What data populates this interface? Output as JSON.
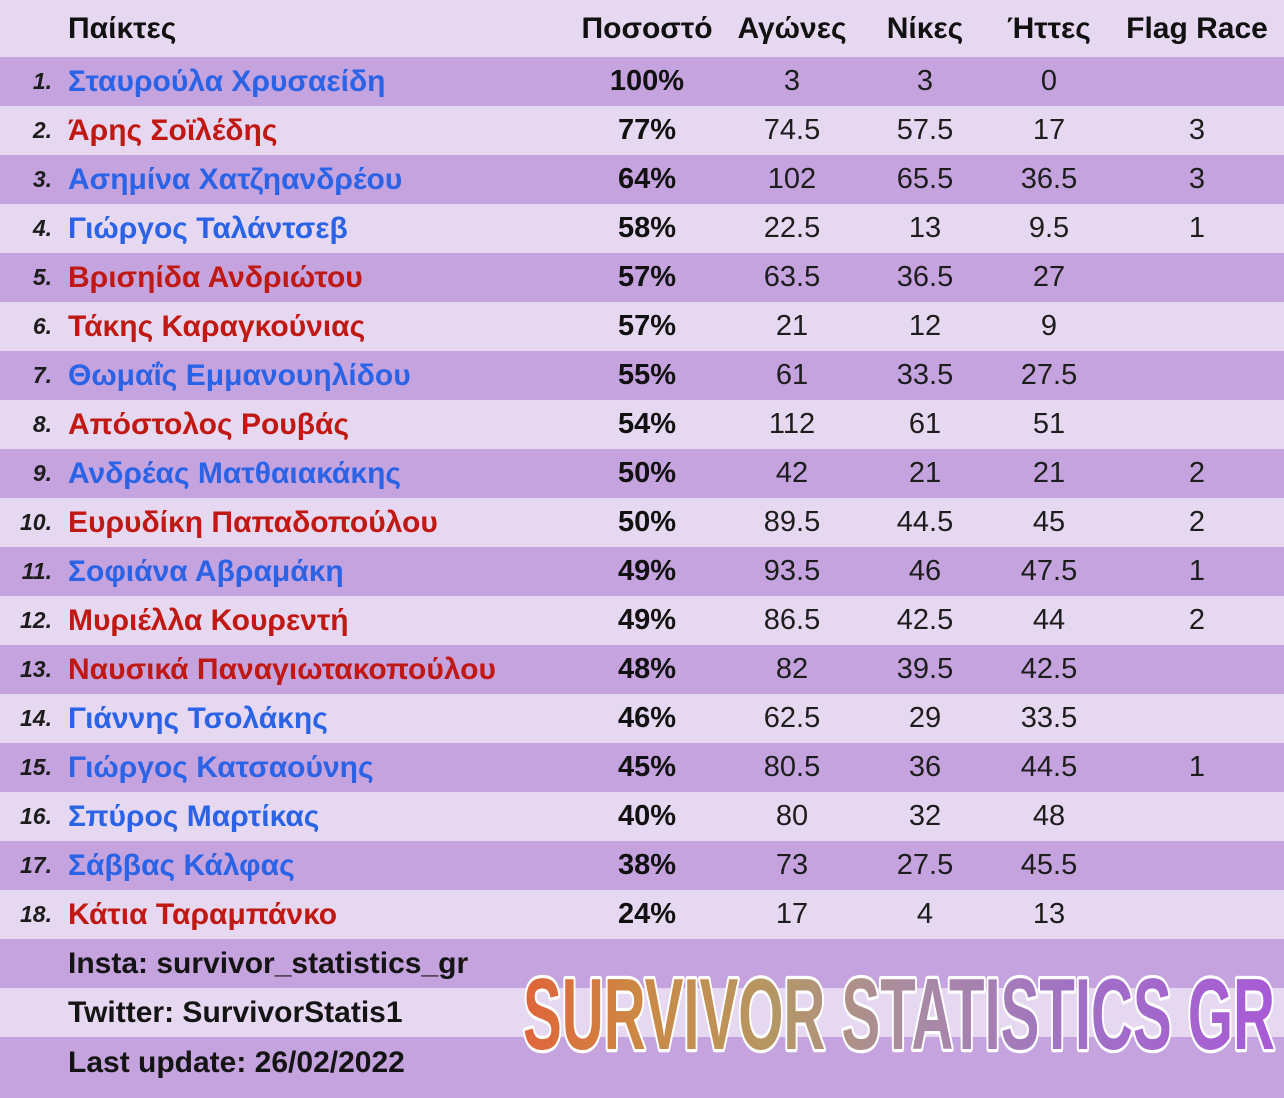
{
  "chart_data": {
    "type": "table",
    "columns": [
      "Παίκτες",
      "Ποσοστό",
      "Αγώνες",
      "Νίκες",
      "Ήττες",
      "Flag Race"
    ],
    "rows": [
      {
        "rank": "1.",
        "name": "Σταυρούλα Χρυσαείδη",
        "team_color": "blue",
        "pct": "100%",
        "games": "3",
        "wins": "3",
        "losses": "0",
        "flag_race": ""
      },
      {
        "rank": "2.",
        "name": "Άρης Σοϊλέδης",
        "team_color": "red",
        "pct": "77%",
        "games": "74.5",
        "wins": "57.5",
        "losses": "17",
        "flag_race": "3"
      },
      {
        "rank": "3.",
        "name": "Ασημίνα Χατζηανδρέου",
        "team_color": "blue",
        "pct": "64%",
        "games": "102",
        "wins": "65.5",
        "losses": "36.5",
        "flag_race": "3"
      },
      {
        "rank": "4.",
        "name": "Γιώργος Ταλάντσεβ",
        "team_color": "blue",
        "pct": "58%",
        "games": "22.5",
        "wins": "13",
        "losses": "9.5",
        "flag_race": "1"
      },
      {
        "rank": "5.",
        "name": "Βρισηίδα Ανδριώτου",
        "team_color": "red",
        "pct": "57%",
        "games": "63.5",
        "wins": "36.5",
        "losses": "27",
        "flag_race": ""
      },
      {
        "rank": "6.",
        "name": "Τάκης Καραγκούνιας",
        "team_color": "red",
        "pct": "57%",
        "games": "21",
        "wins": "12",
        "losses": "9",
        "flag_race": ""
      },
      {
        "rank": "7.",
        "name": "Θωμαΐς Εμμανουηλίδου",
        "team_color": "blue",
        "pct": "55%",
        "games": "61",
        "wins": "33.5",
        "losses": "27.5",
        "flag_race": ""
      },
      {
        "rank": "8.",
        "name": "Απόστολος Ρουβάς",
        "team_color": "red",
        "pct": "54%",
        "games": "112",
        "wins": "61",
        "losses": "51",
        "flag_race": ""
      },
      {
        "rank": "9.",
        "name": "Ανδρέας Ματθαιακάκης",
        "team_color": "blue",
        "pct": "50%",
        "games": "42",
        "wins": "21",
        "losses": "21",
        "flag_race": "2"
      },
      {
        "rank": "10.",
        "name": "Ευρυδίκη Παπαδοπούλου",
        "team_color": "red",
        "pct": "50%",
        "games": "89.5",
        "wins": "44.5",
        "losses": "45",
        "flag_race": "2"
      },
      {
        "rank": "11.",
        "name": "Σοφιάνα Αβραμάκη",
        "team_color": "blue",
        "pct": "49%",
        "games": "93.5",
        "wins": "46",
        "losses": "47.5",
        "flag_race": "1"
      },
      {
        "rank": "12.",
        "name": "Μυριέλλα Κουρεντή",
        "team_color": "red",
        "pct": "49%",
        "games": "86.5",
        "wins": "42.5",
        "losses": "44",
        "flag_race": "2"
      },
      {
        "rank": "13.",
        "name": "Ναυσικά Παναγιωτακοπούλου",
        "team_color": "red",
        "pct": "48%",
        "games": "82",
        "wins": "39.5",
        "losses": "42.5",
        "flag_race": ""
      },
      {
        "rank": "14.",
        "name": "Γιάννης Τσολάκης",
        "team_color": "blue",
        "pct": "46%",
        "games": "62.5",
        "wins": "29",
        "losses": "33.5",
        "flag_race": ""
      },
      {
        "rank": "15.",
        "name": "Γιώργος Κατσαούνης",
        "team_color": "blue",
        "pct": "45%",
        "games": "80.5",
        "wins": "36",
        "losses": "44.5",
        "flag_race": "1"
      },
      {
        "rank": "16.",
        "name": "Σπύρος Μαρτίκας",
        "team_color": "blue",
        "pct": "40%",
        "games": "80",
        "wins": "32",
        "losses": "48",
        "flag_race": ""
      },
      {
        "rank": "17.",
        "name": "Σάββας Κάλφας",
        "team_color": "blue",
        "pct": "38%",
        "games": "73",
        "wins": "27.5",
        "losses": "45.5",
        "flag_race": ""
      },
      {
        "rank": "18.",
        "name": "Κάτια Ταραμπάνκο",
        "team_color": "red",
        "pct": "24%",
        "games": "17",
        "wins": "4",
        "losses": "13",
        "flag_race": ""
      }
    ]
  },
  "footer": {
    "insta": "Insta: survivor_statistics_gr",
    "twitter": "Twitter: SurvivorStatis1",
    "last_update": "Last update: 26/02/2022"
  },
  "watermark": "SURVIVOR STATISTICS GR",
  "colors": {
    "row_dark": "#c5a3de",
    "row_light": "#e6d8f1",
    "team_blue": "#2a63e6",
    "team_red": "#c01913",
    "watermark_gradient": [
      "#e0643a",
      "#cd8843",
      "#b59764",
      "#a98ba4",
      "#a070c6",
      "#a85ad6"
    ]
  }
}
